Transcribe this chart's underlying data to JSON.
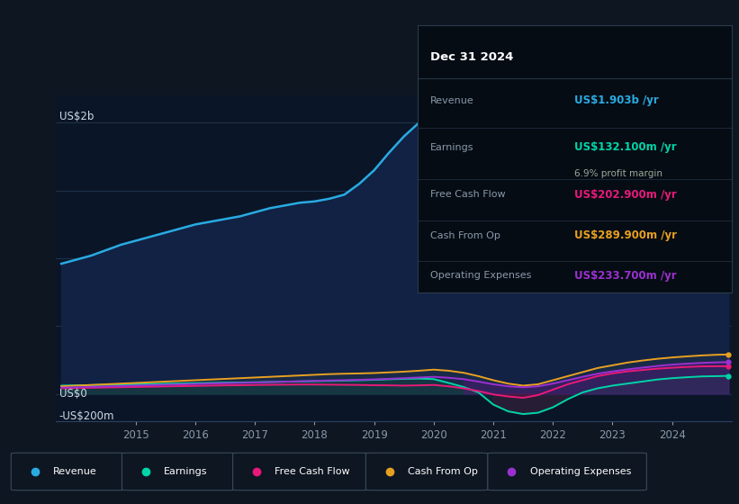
{
  "bg_color": "#0e1621",
  "plot_bg_color": "#0a1628",
  "text_color": "#8899aa",
  "white_color": "#d0dae4",
  "ylabel_top": "US$2b",
  "ylabel_zero": "US$0",
  "ylabel_neg": "-US$200m",
  "ylim": [
    -200,
    2200
  ],
  "years": [
    2013.75,
    2014.0,
    2014.25,
    2014.5,
    2014.75,
    2015.0,
    2015.25,
    2015.5,
    2015.75,
    2016.0,
    2016.25,
    2016.5,
    2016.75,
    2017.0,
    2017.25,
    2017.5,
    2017.75,
    2018.0,
    2018.25,
    2018.5,
    2018.75,
    2019.0,
    2019.25,
    2019.5,
    2019.75,
    2020.0,
    2020.25,
    2020.5,
    2020.75,
    2021.0,
    2021.25,
    2021.5,
    2021.75,
    2022.0,
    2022.25,
    2022.5,
    2022.75,
    2023.0,
    2023.25,
    2023.5,
    2023.75,
    2024.0,
    2024.25,
    2024.5,
    2024.75,
    2024.95
  ],
  "revenue": [
    960,
    990,
    1020,
    1060,
    1100,
    1130,
    1160,
    1190,
    1220,
    1250,
    1270,
    1290,
    1310,
    1340,
    1370,
    1390,
    1410,
    1420,
    1440,
    1470,
    1550,
    1650,
    1780,
    1900,
    2000,
    2050,
    2020,
    1850,
    1500,
    1150,
    950,
    880,
    870,
    880,
    920,
    980,
    1060,
    1150,
    1280,
    1410,
    1560,
    1680,
    1750,
    1800,
    1870,
    1903
  ],
  "earnings": [
    60,
    62,
    64,
    66,
    68,
    70,
    72,
    74,
    76,
    78,
    80,
    82,
    83,
    85,
    87,
    89,
    91,
    93,
    95,
    97,
    100,
    103,
    107,
    110,
    112,
    108,
    80,
    50,
    10,
    -80,
    -130,
    -150,
    -140,
    -100,
    -40,
    10,
    40,
    60,
    75,
    90,
    105,
    115,
    122,
    128,
    130,
    132
  ],
  "free_cash_flow": [
    40,
    42,
    44,
    46,
    48,
    50,
    52,
    54,
    56,
    58,
    60,
    62,
    63,
    65,
    66,
    67,
    68,
    68,
    67,
    66,
    65,
    63,
    62,
    60,
    62,
    65,
    55,
    40,
    20,
    -5,
    -20,
    -30,
    -10,
    30,
    70,
    100,
    130,
    150,
    165,
    175,
    185,
    192,
    198,
    202,
    203,
    203
  ],
  "cash_from_op": [
    55,
    60,
    65,
    70,
    75,
    80,
    85,
    90,
    95,
    100,
    105,
    110,
    115,
    120,
    125,
    130,
    135,
    140,
    145,
    148,
    150,
    153,
    158,
    163,
    170,
    178,
    170,
    155,
    130,
    100,
    75,
    60,
    70,
    100,
    130,
    160,
    190,
    210,
    230,
    245,
    258,
    268,
    276,
    283,
    288,
    290
  ],
  "operating_expenses": [
    45,
    48,
    51,
    54,
    57,
    60,
    63,
    66,
    69,
    72,
    75,
    78,
    80,
    83,
    86,
    89,
    92,
    95,
    98,
    100,
    103,
    106,
    110,
    115,
    120,
    125,
    118,
    108,
    90,
    70,
    55,
    48,
    55,
    75,
    100,
    125,
    148,
    165,
    180,
    193,
    205,
    215,
    222,
    228,
    232,
    234
  ],
  "revenue_color": "#29abe2",
  "earnings_color": "#00d4a8",
  "fcf_color": "#e8197a",
  "cashop_color": "#e8a020",
  "opex_color": "#9b30d0",
  "revenue_fill": "#112244",
  "infobox": {
    "date": "Dec 31 2024",
    "rows": [
      {
        "label": "Revenue",
        "value": "US$1.903b",
        "unit": " /yr",
        "color": "#29abe2",
        "sub": null
      },
      {
        "label": "Earnings",
        "value": "US$132.100m",
        "unit": " /yr",
        "color": "#00d4a8",
        "sub": "6.9% profit margin"
      },
      {
        "label": "Free Cash Flow",
        "value": "US$202.900m",
        "unit": " /yr",
        "color": "#e8197a",
        "sub": null
      },
      {
        "label": "Cash From Op",
        "value": "US$289.900m",
        "unit": " /yr",
        "color": "#e8a020",
        "sub": null
      },
      {
        "label": "Operating Expenses",
        "value": "US$233.700m",
        "unit": " /yr",
        "color": "#9b30d0",
        "sub": null
      }
    ]
  },
  "legend_items": [
    {
      "label": "Revenue",
      "color": "#29abe2"
    },
    {
      "label": "Earnings",
      "color": "#00d4a8"
    },
    {
      "label": "Free Cash Flow",
      "color": "#e8197a"
    },
    {
      "label": "Cash From Op",
      "color": "#e8a020"
    },
    {
      "label": "Operating Expenses",
      "color": "#9b30d0"
    }
  ],
  "xtick_years": [
    2015,
    2016,
    2017,
    2018,
    2019,
    2020,
    2021,
    2022,
    2023,
    2024
  ]
}
